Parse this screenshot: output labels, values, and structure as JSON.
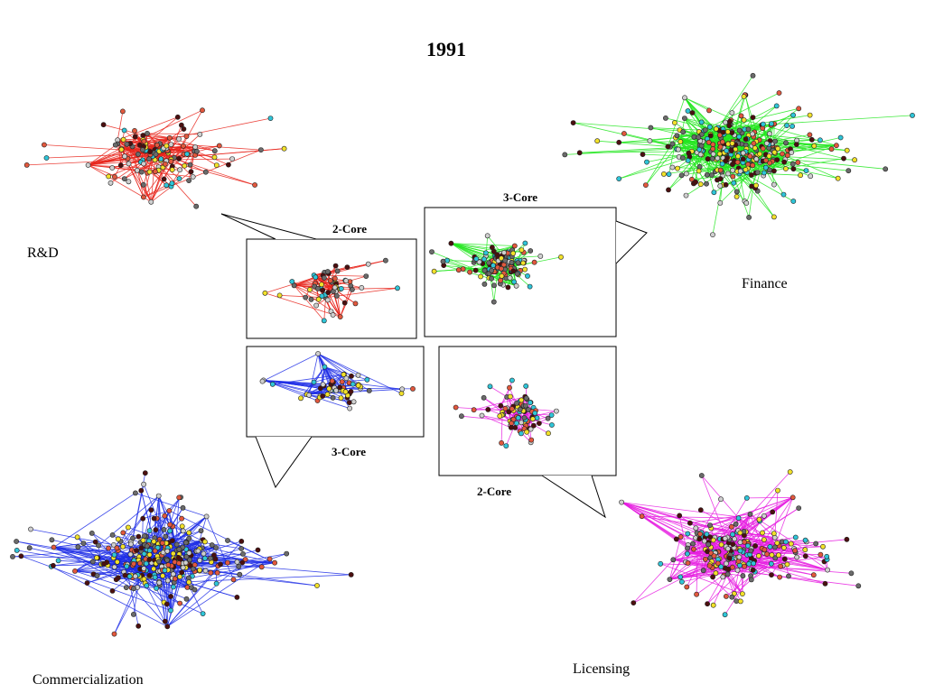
{
  "title": "1991",
  "networks": [
    {
      "id": "rd",
      "label": "R&D",
      "edge_color": "#e8231a"
    },
    {
      "id": "finance",
      "label": "Finance",
      "edge_color": "#22e61e"
    },
    {
      "id": "commercialization",
      "label": "Commercialization",
      "edge_color": "#1f2ee6"
    },
    {
      "id": "licensing",
      "label": "Licensing",
      "edge_color": "#e61ee0"
    }
  ],
  "cores": [
    {
      "id": "rd-core",
      "label": "2-Core",
      "edge_color": "#e8231a"
    },
    {
      "id": "finance-core",
      "label": "3-Core",
      "edge_color": "#22e61e"
    },
    {
      "id": "commercialization-core",
      "label": "3-Core",
      "edge_color": "#1f2ee6"
    },
    {
      "id": "licensing-core",
      "label": "2-Core",
      "edge_color": "#e61ee0"
    }
  ],
  "node_colors": [
    "#2fc5d8",
    "#f2e12a",
    "#cfcfcf",
    "#6b6b6b",
    "#e2583d",
    "#4b0f0f"
  ]
}
